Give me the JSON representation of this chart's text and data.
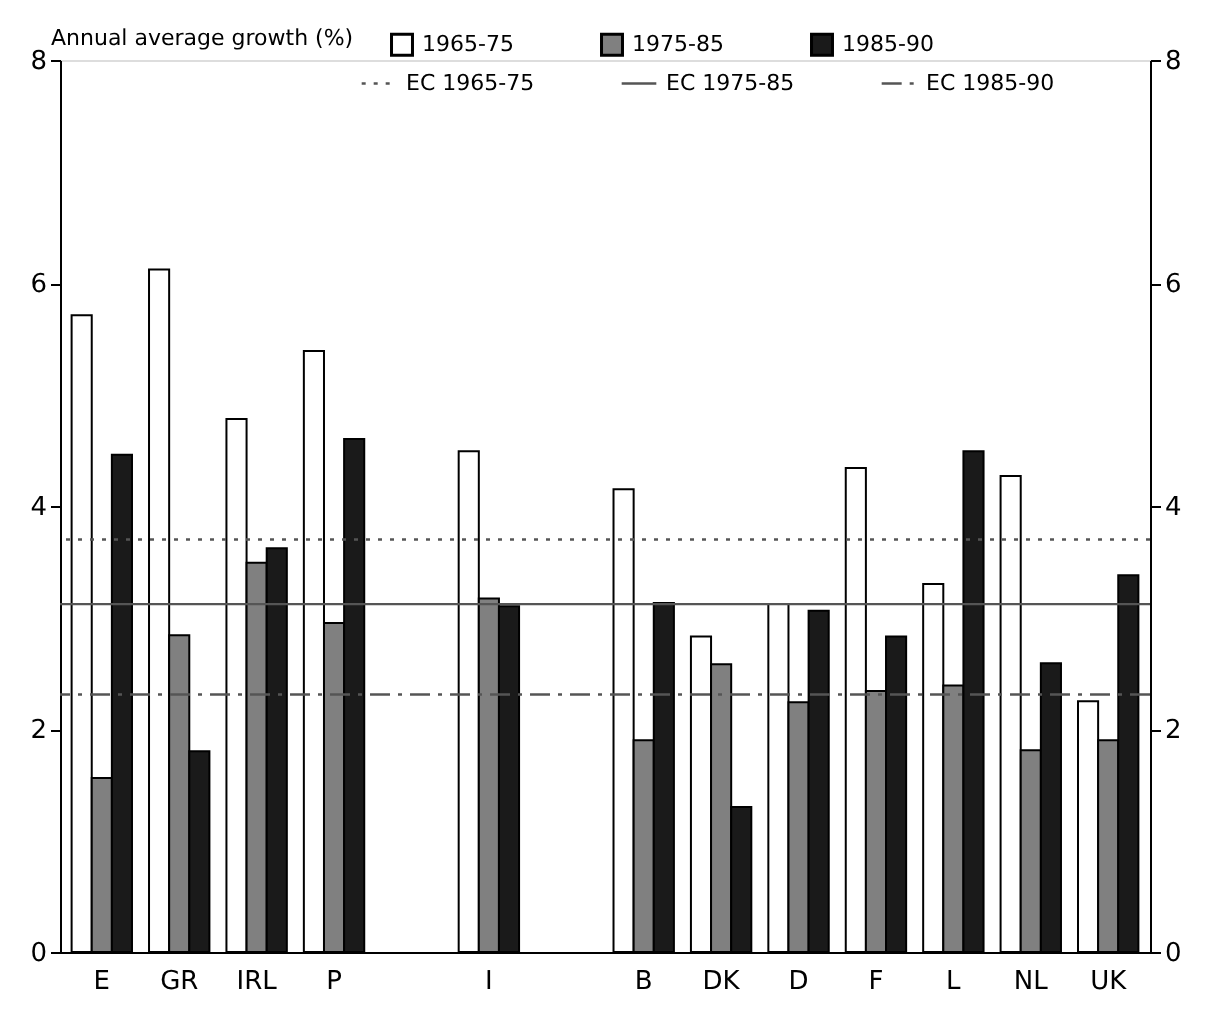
{
  "chart_data": {
    "type": "bar",
    "ylabel": "Annual average growth (%)",
    "categories": [
      "E",
      "GR",
      "IRL",
      "P",
      null,
      "I",
      null,
      "B",
      "DK",
      "D",
      "F",
      "L",
      "NL",
      "UK"
    ],
    "series": [
      {
        "name": "1965-75",
        "color": "#ffffff",
        "values": [
          5.71,
          6.12,
          4.78,
          5.39,
          null,
          4.49,
          null,
          4.15,
          2.83,
          3.12,
          4.34,
          3.3,
          4.27,
          2.25
        ]
      },
      {
        "name": "1975-85",
        "color": "#808080",
        "values": [
          1.56,
          2.84,
          3.49,
          2.95,
          null,
          3.17,
          null,
          1.9,
          2.58,
          2.24,
          2.34,
          2.39,
          1.81,
          1.9
        ]
      },
      {
        "name": "1985-90",
        "color": "#1a1a1a",
        "values": [
          4.46,
          1.8,
          3.62,
          4.6,
          null,
          3.1,
          null,
          3.13,
          1.3,
          3.06,
          2.83,
          4.49,
          2.59,
          3.38
        ]
      }
    ],
    "ref_lines": [
      {
        "axis": "y",
        "value": 3.7,
        "label": "EC 1965-75",
        "line_style": "dotted",
        "color": "#555555"
      },
      {
        "axis": "y",
        "value": 3.12,
        "label": "EC 1975-85",
        "line_style": "solid",
        "color": "#555555"
      },
      {
        "axis": "y",
        "value": 2.31,
        "label": "EC 1985-90",
        "line_style": "dashdot",
        "color": "#555555"
      }
    ],
    "ylim": [
      0,
      8
    ],
    "yticks": [
      0,
      2,
      4,
      6,
      8
    ],
    "y2lim": [
      0,
      8
    ],
    "y2ticks": [
      0,
      2,
      4,
      6,
      8
    ],
    "grid": false,
    "legend": "top"
  }
}
